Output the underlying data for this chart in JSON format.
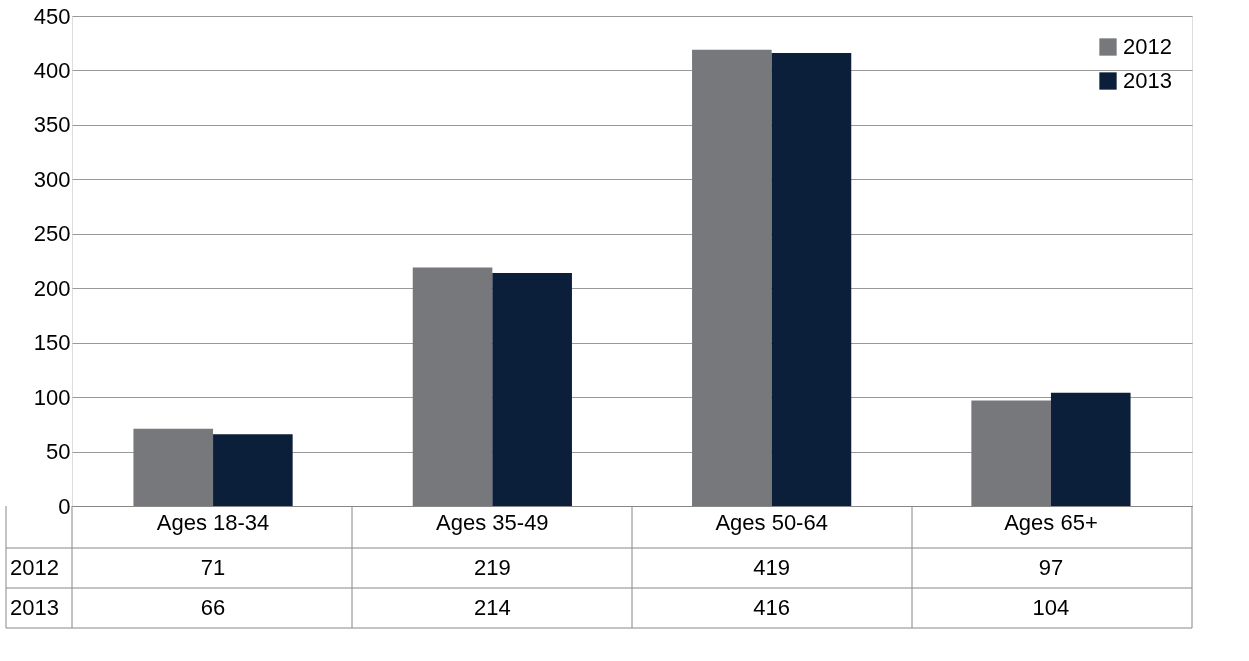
{
  "chart_data": {
    "type": "bar",
    "categories": [
      "Ages 18-34",
      "Ages 35-49",
      "Ages 50-64",
      "Ages 65+"
    ],
    "series": [
      {
        "name": "2012",
        "color": "#76787b",
        "values": [
          71,
          219,
          419,
          97
        ]
      },
      {
        "name": "2013",
        "color": "#0c1f3a",
        "values": [
          66,
          214,
          416,
          104
        ]
      }
    ],
    "ylim": [
      0,
      450
    ],
    "yticks": [
      0,
      50,
      100,
      150,
      200,
      250,
      300,
      350,
      400,
      450
    ],
    "grid": "y",
    "legend": "top right",
    "data_labels": true
  }
}
